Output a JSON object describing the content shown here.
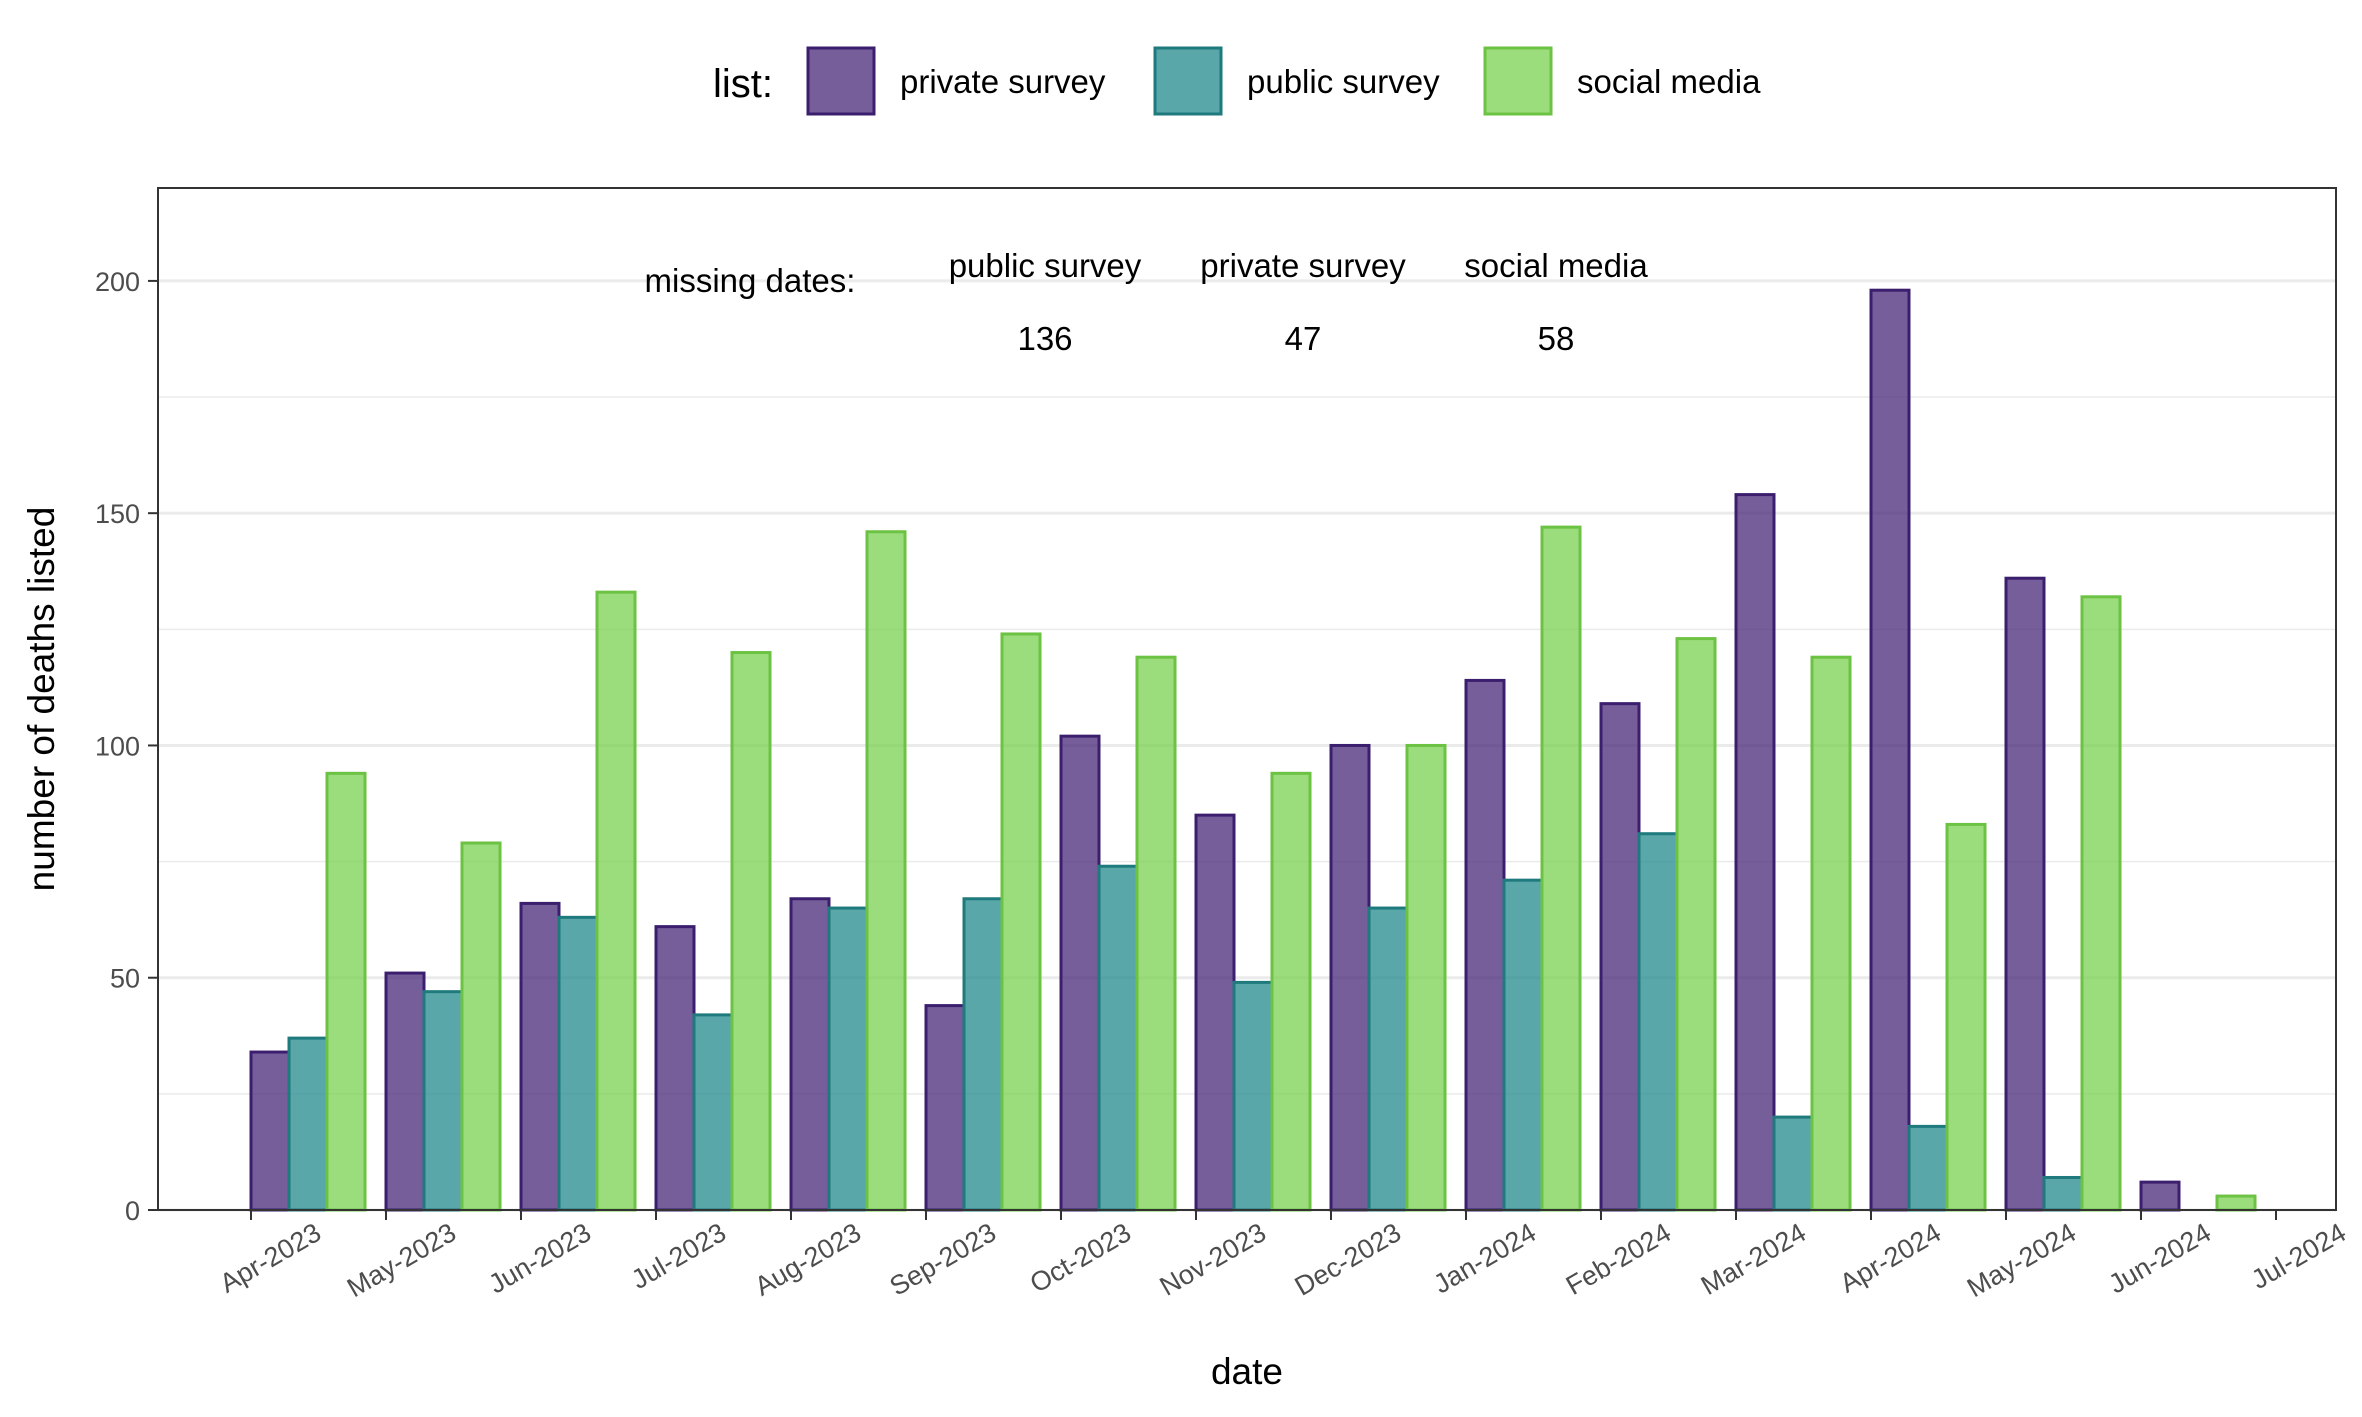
{
  "chart_data": {
    "type": "bar",
    "xlabel": "date",
    "ylabel": "number of deaths listed",
    "ylim": [
      0,
      220
    ],
    "yticks": [
      0,
      50,
      100,
      150,
      200
    ],
    "grid": true,
    "legend": {
      "title": "list:",
      "position": "top",
      "entries": [
        "private survey",
        "public survey",
        "social media"
      ]
    },
    "x_tick_labels": [
      "Apr-2023",
      "May-2023",
      "Jun-2023",
      "Jul-2023",
      "Aug-2023",
      "Sep-2023",
      "Oct-2023",
      "Nov-2023",
      "Dec-2023",
      "Jan-2024",
      "Feb-2024",
      "Mar-2024",
      "Apr-2024",
      "May-2024",
      "Jun-2024",
      "Jul-2024"
    ],
    "categories": [
      "Apr-2023",
      "May-2023",
      "Jun-2023",
      "Jul-2023",
      "Aug-2023",
      "Sep-2023",
      "Oct-2023",
      "Nov-2023",
      "Dec-2023",
      "Jan-2024",
      "Feb-2024",
      "Mar-2024",
      "Apr-2024",
      "May-2024",
      "Jun-2024"
    ],
    "series": [
      {
        "name": "private survey",
        "fill": "#482878",
        "stroke": "#3b1f6e",
        "values": [
          34,
          51,
          66,
          61,
          67,
          44,
          102,
          85,
          100,
          114,
          109,
          154,
          198,
          136,
          6
        ]
      },
      {
        "name": "public survey",
        "fill": "#238a8d",
        "stroke": "#1f7a7d",
        "values": [
          37,
          47,
          63,
          42,
          65,
          67,
          74,
          49,
          65,
          71,
          81,
          20,
          18,
          7,
          null
        ]
      },
      {
        "name": "social media",
        "fill": "#7ad151",
        "stroke": "#6cc242",
        "values": [
          94,
          79,
          133,
          120,
          146,
          124,
          119,
          94,
          100,
          147,
          123,
          119,
          83,
          132,
          3
        ]
      }
    ],
    "annotations": {
      "label": "missing dates:",
      "items": [
        {
          "name": "public survey",
          "value": "136"
        },
        {
          "name": "private survey",
          "value": "47"
        },
        {
          "name": "social media",
          "value": "58"
        }
      ]
    }
  }
}
